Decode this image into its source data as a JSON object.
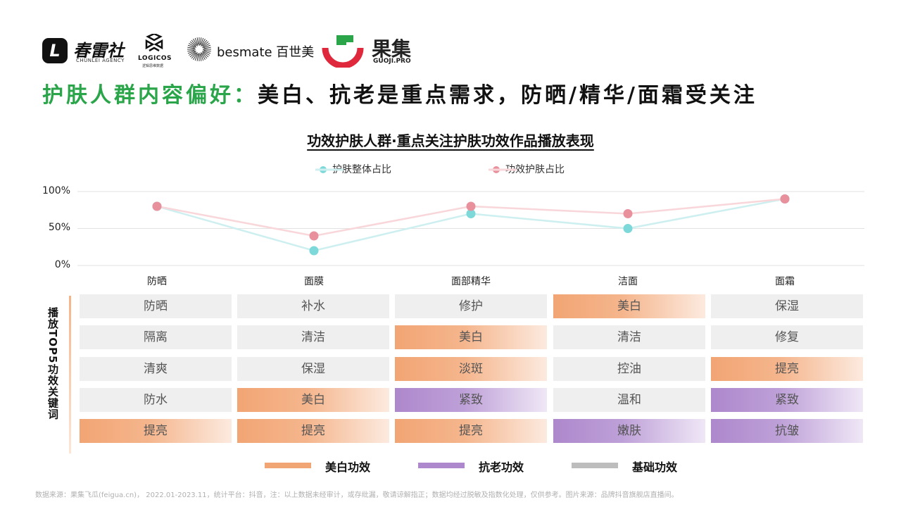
{
  "logos": {
    "chunlei": {
      "glyph": "L",
      "name": "春雷社",
      "sub": "CHUNLEI AGENCY"
    },
    "logicos": {
      "name": "LOGICOS",
      "sub": "逻辑思维数据"
    },
    "besmate": {
      "name": "besmate 百世美"
    },
    "guoji": {
      "name": "果集",
      "sub": "GUOJI.PRO",
      "color": "#e0283c"
    }
  },
  "headline": {
    "green": "护肤人群内容偏好：",
    "black": "美白、抗老是重点需求，防晒/精华/面霜受关注",
    "green_color": "#2aa54a"
  },
  "chart_data": {
    "type": "line",
    "title": "功效护肤人群·重点关注护肤功效作品播放表现",
    "categories": [
      "防晒",
      "面膜",
      "面部精华",
      "洁面",
      "面霜"
    ],
    "yticks": [
      "100%",
      "50%",
      "0%"
    ],
    "ylim": [
      0,
      100
    ],
    "series": [
      {
        "name": "护肤整体占比",
        "values": [
          80,
          20,
          70,
          50,
          90
        ],
        "color": "#7dd9d9",
        "line_color": "#cdeff0"
      },
      {
        "name": "功效护肤占比",
        "values": [
          80,
          40,
          80,
          70,
          90
        ],
        "color": "#e8919d",
        "line_color": "#f8d6d9"
      }
    ],
    "legend_position": "top",
    "grid": true
  },
  "table": {
    "side_label": "播放TOP5功效关键词",
    "columns": [
      [
        {
          "text": "防晒",
          "type": "base"
        },
        {
          "text": "隔离",
          "type": "base"
        },
        {
          "text": "清爽",
          "type": "base"
        },
        {
          "text": "防水",
          "type": "base"
        },
        {
          "text": "提亮",
          "type": "white"
        }
      ],
      [
        {
          "text": "补水",
          "type": "base"
        },
        {
          "text": "清洁",
          "type": "base"
        },
        {
          "text": "保湿",
          "type": "base"
        },
        {
          "text": "美白",
          "type": "white"
        },
        {
          "text": "提亮",
          "type": "white"
        }
      ],
      [
        {
          "text": "修护",
          "type": "base"
        },
        {
          "text": "美白",
          "type": "white"
        },
        {
          "text": "淡斑",
          "type": "white"
        },
        {
          "text": "紧致",
          "type": "anti"
        },
        {
          "text": "提亮",
          "type": "white"
        }
      ],
      [
        {
          "text": "美白",
          "type": "white"
        },
        {
          "text": "清洁",
          "type": "base"
        },
        {
          "text": "控油",
          "type": "base"
        },
        {
          "text": "温和",
          "type": "base"
        },
        {
          "text": "嫩肤",
          "type": "anti"
        }
      ],
      [
        {
          "text": "保湿",
          "type": "base"
        },
        {
          "text": "修复",
          "type": "base"
        },
        {
          "text": "提亮",
          "type": "white"
        },
        {
          "text": "紧致",
          "type": "anti"
        },
        {
          "text": "抗皱",
          "type": "anti"
        }
      ]
    ]
  },
  "legend_bottom": [
    {
      "label": "美白功效",
      "color": "#f2a574"
    },
    {
      "label": "抗老功效",
      "color": "#ad88cc"
    },
    {
      "label": "基础功效",
      "color": "#bdbdbd"
    }
  ],
  "footnote": "数据来源：果集飞瓜(feigua.cn)， 2022.01-2023.11，统计平台：抖音，注：以上数据未经审计，或存纰漏，敬请谅解指正；数据均经过脱敏及指数化处理，仅供参考。图片来源：品牌抖音旗舰店直播间。"
}
